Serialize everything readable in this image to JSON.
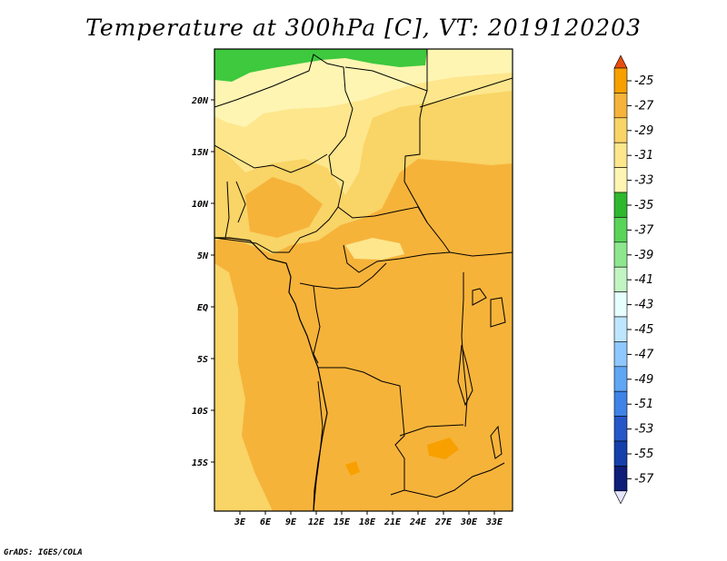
{
  "title": "Temperature at 300hPa [C], VT: 2019120203",
  "credit": "GrADS: IGES/COLA",
  "map": {
    "lat_labels": [
      "20N",
      "15N",
      "10N",
      "5N",
      "EQ",
      "5S",
      "10S",
      "15S"
    ],
    "lon_labels": [
      "3E",
      "6E",
      "9E",
      "12E",
      "15E",
      "18E",
      "21E",
      "24E",
      "27E",
      "30E",
      "33E"
    ]
  },
  "colorbar": {
    "labels": [
      "-25",
      "-27",
      "-29",
      "-31",
      "-33",
      "-35",
      "-37",
      "-39",
      "-41",
      "-43",
      "-45",
      "-47",
      "-49",
      "-51",
      "-53",
      "-55",
      "-57"
    ],
    "colors": [
      "#e94d10",
      "#f7a000",
      "#f6b33a",
      "#f9d466",
      "#fde68c",
      "#fff5b3",
      "#2eb82e",
      "#59d459",
      "#8ee68e",
      "#c2f5c2",
      "#e6ffff",
      "#bfe6ff",
      "#8fc8ff",
      "#5fa6f5",
      "#3f83e8",
      "#2557c9",
      "#153fab",
      "#0e1d78",
      "#e4e4ff"
    ]
  }
}
